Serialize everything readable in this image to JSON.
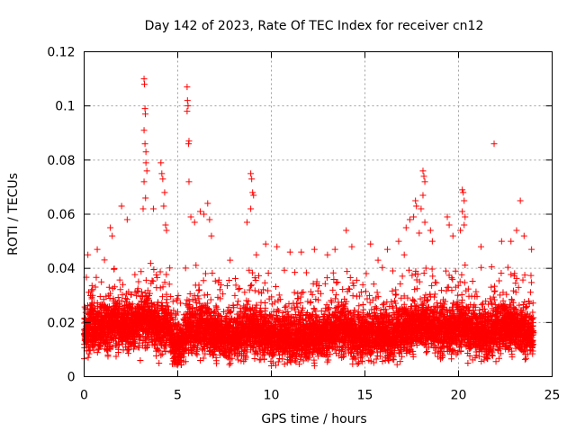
{
  "chart_data": {
    "type": "scatter",
    "title": "Day 142 of 2023, Rate Of TEC Index for receiver cn12",
    "xlabel": "GPS time / hours",
    "ylabel": "ROTI / TECUs",
    "xlim": [
      0,
      25
    ],
    "ylim": [
      0,
      0.12
    ],
    "x_ticks": [
      0,
      5,
      10,
      15,
      20,
      25
    ],
    "x_tick_labels": [
      "0",
      "5",
      "10",
      "15",
      "20",
      "25"
    ],
    "y_ticks": [
      0,
      0.02,
      0.04,
      0.06,
      0.08,
      0.1,
      0.12
    ],
    "y_tick_labels": [
      "0",
      "0.02",
      "0.04",
      "0.06",
      "0.08",
      "0.1",
      "0.12"
    ],
    "grid": true,
    "marker": "+",
    "color": "#ff0000",
    "series": [
      {
        "name": "ROTI",
        "baseline_profile": {
          "x": [
            0,
            0.5,
            1,
            1.5,
            2,
            2.5,
            3,
            3.5,
            4,
            4.5,
            4.8,
            5.2,
            5.6,
            6,
            6.5,
            7,
            7.5,
            8,
            8.5,
            9,
            9.5,
            10,
            10.5,
            11,
            11.5,
            12,
            12.5,
            13,
            13.5,
            14,
            14.5,
            15,
            15.5,
            16,
            16.5,
            17,
            17.5,
            18,
            18.5,
            19,
            19.5,
            20,
            20.5,
            21,
            21.5,
            22,
            22.5,
            23,
            23.5,
            24
          ],
          "y": [
            0.016,
            0.018,
            0.019,
            0.02,
            0.019,
            0.018,
            0.022,
            0.02,
            0.018,
            0.019,
            0.012,
            0.012,
            0.019,
            0.017,
            0.018,
            0.016,
            0.015,
            0.015,
            0.016,
            0.018,
            0.016,
            0.015,
            0.015,
            0.015,
            0.014,
            0.015,
            0.015,
            0.016,
            0.018,
            0.017,
            0.015,
            0.015,
            0.016,
            0.016,
            0.015,
            0.017,
            0.018,
            0.02,
            0.019,
            0.017,
            0.017,
            0.019,
            0.018,
            0.016,
            0.016,
            0.017,
            0.019,
            0.018,
            0.017,
            0.016
          ]
        },
        "points": [
          {
            "x": 3.2,
            "y": 0.11
          },
          {
            "x": 3.22,
            "y": 0.108
          },
          {
            "x": 3.25,
            "y": 0.099
          },
          {
            "x": 3.27,
            "y": 0.097
          },
          {
            "x": 3.2,
            "y": 0.091
          },
          {
            "x": 3.25,
            "y": 0.086
          },
          {
            "x": 3.3,
            "y": 0.083
          },
          {
            "x": 3.3,
            "y": 0.079
          },
          {
            "x": 3.35,
            "y": 0.076
          },
          {
            "x": 3.2,
            "y": 0.072
          },
          {
            "x": 3.28,
            "y": 0.066
          },
          {
            "x": 3.15,
            "y": 0.062
          },
          {
            "x": 5.5,
            "y": 0.107
          },
          {
            "x": 5.52,
            "y": 0.102
          },
          {
            "x": 5.55,
            "y": 0.1
          },
          {
            "x": 5.5,
            "y": 0.098
          },
          {
            "x": 5.6,
            "y": 0.087
          },
          {
            "x": 5.58,
            "y": 0.086
          },
          {
            "x": 5.6,
            "y": 0.072
          },
          {
            "x": 5.7,
            "y": 0.059
          },
          {
            "x": 4.1,
            "y": 0.079
          },
          {
            "x": 4.15,
            "y": 0.075
          },
          {
            "x": 4.2,
            "y": 0.073
          },
          {
            "x": 4.3,
            "y": 0.068
          },
          {
            "x": 4.25,
            "y": 0.063
          },
          {
            "x": 4.35,
            "y": 0.056
          },
          {
            "x": 4.4,
            "y": 0.054
          },
          {
            "x": 2.0,
            "y": 0.063
          },
          {
            "x": 1.4,
            "y": 0.055
          },
          {
            "x": 1.5,
            "y": 0.052
          },
          {
            "x": 2.3,
            "y": 0.058
          },
          {
            "x": 0.7,
            "y": 0.047
          },
          {
            "x": 0.2,
            "y": 0.045
          },
          {
            "x": 3.7,
            "y": 0.062
          },
          {
            "x": 6.6,
            "y": 0.064
          },
          {
            "x": 6.4,
            "y": 0.06
          },
          {
            "x": 6.7,
            "y": 0.058
          },
          {
            "x": 6.2,
            "y": 0.061
          },
          {
            "x": 6.8,
            "y": 0.052
          },
          {
            "x": 5.9,
            "y": 0.057
          },
          {
            "x": 8.9,
            "y": 0.075
          },
          {
            "x": 8.95,
            "y": 0.073
          },
          {
            "x": 9.0,
            "y": 0.068
          },
          {
            "x": 9.05,
            "y": 0.067
          },
          {
            "x": 8.9,
            "y": 0.062
          },
          {
            "x": 8.7,
            "y": 0.057
          },
          {
            "x": 9.2,
            "y": 0.045
          },
          {
            "x": 7.8,
            "y": 0.043
          },
          {
            "x": 9.7,
            "y": 0.049
          },
          {
            "x": 10.3,
            "y": 0.048
          },
          {
            "x": 11.0,
            "y": 0.046
          },
          {
            "x": 11.6,
            "y": 0.046
          },
          {
            "x": 12.3,
            "y": 0.047
          },
          {
            "x": 13.0,
            "y": 0.045
          },
          {
            "x": 14.0,
            "y": 0.054
          },
          {
            "x": 13.4,
            "y": 0.047
          },
          {
            "x": 14.3,
            "y": 0.048
          },
          {
            "x": 15.3,
            "y": 0.049
          },
          {
            "x": 15.7,
            "y": 0.043
          },
          {
            "x": 16.2,
            "y": 0.047
          },
          {
            "x": 16.8,
            "y": 0.05
          },
          {
            "x": 17.1,
            "y": 0.045
          },
          {
            "x": 18.1,
            "y": 0.076
          },
          {
            "x": 18.15,
            "y": 0.074
          },
          {
            "x": 18.2,
            "y": 0.072
          },
          {
            "x": 18.1,
            "y": 0.067
          },
          {
            "x": 18.0,
            "y": 0.062
          },
          {
            "x": 18.2,
            "y": 0.057
          },
          {
            "x": 17.7,
            "y": 0.065
          },
          {
            "x": 17.75,
            "y": 0.063
          },
          {
            "x": 17.6,
            "y": 0.059
          },
          {
            "x": 17.2,
            "y": 0.055
          },
          {
            "x": 17.4,
            "y": 0.058
          },
          {
            "x": 17.9,
            "y": 0.053
          },
          {
            "x": 18.5,
            "y": 0.054
          },
          {
            "x": 18.6,
            "y": 0.05
          },
          {
            "x": 19.4,
            "y": 0.059
          },
          {
            "x": 19.5,
            "y": 0.056
          },
          {
            "x": 19.7,
            "y": 0.052
          },
          {
            "x": 20.2,
            "y": 0.069
          },
          {
            "x": 20.25,
            "y": 0.068
          },
          {
            "x": 20.3,
            "y": 0.065
          },
          {
            "x": 20.2,
            "y": 0.061
          },
          {
            "x": 20.35,
            "y": 0.059
          },
          {
            "x": 20.3,
            "y": 0.056
          },
          {
            "x": 20.1,
            "y": 0.054
          },
          {
            "x": 21.9,
            "y": 0.086
          },
          {
            "x": 22.3,
            "y": 0.05
          },
          {
            "x": 22.8,
            "y": 0.05
          },
          {
            "x": 23.1,
            "y": 0.054
          },
          {
            "x": 23.3,
            "y": 0.065
          },
          {
            "x": 23.5,
            "y": 0.052
          },
          {
            "x": 23.9,
            "y": 0.047
          },
          {
            "x": 21.2,
            "y": 0.048
          },
          {
            "x": 3.0,
            "y": 0.006
          },
          {
            "x": 4.0,
            "y": 0.005
          },
          {
            "x": 10.0,
            "y": 0.004
          },
          {
            "x": 20.5,
            "y": 0.005
          }
        ]
      }
    ]
  }
}
